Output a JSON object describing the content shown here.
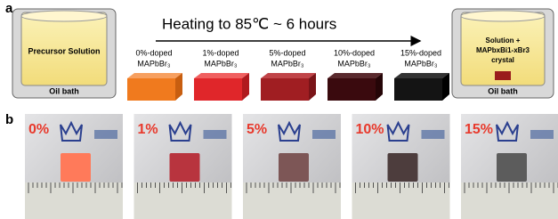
{
  "panel_a": {
    "label": "a",
    "heading": "Heating to 85℃ ~ 6 hours",
    "start_beaker": {
      "label": "Precursor Solution",
      "bath": "Oil bath"
    },
    "samples": [
      {
        "line1": "0%-doped",
        "line2": "MAPbBr₃"
      },
      {
        "line1": "1%-doped",
        "line2": "MAPbBr₃"
      },
      {
        "line1": "5%-doped",
        "line2": "MAPbBr₃"
      },
      {
        "line1": "10%-doped",
        "line2": "MAPbBr₃"
      },
      {
        "line1": "15%-doped",
        "line2": "MAPbBr₃"
      }
    ],
    "end_beaker": {
      "lines": [
        "Solution +",
        "MAPbxBi1-xBr3",
        "crystal"
      ],
      "bath": "Oil bath"
    }
  },
  "panel_b": {
    "label": "b",
    "photos": [
      "0%",
      "1%",
      "5%",
      "10%",
      "15%"
    ]
  }
}
